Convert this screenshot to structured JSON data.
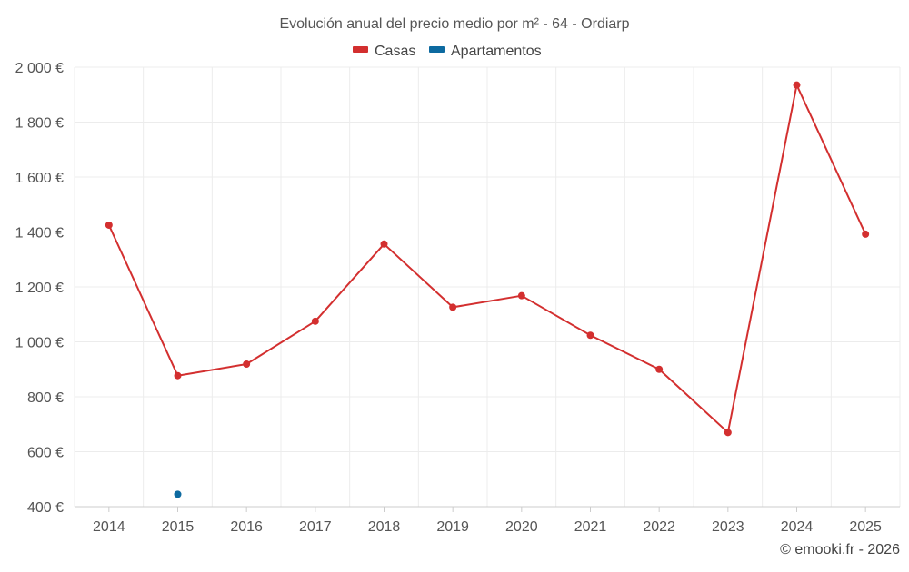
{
  "chart_data": {
    "type": "line",
    "title": "Evolución anual del precio medio por m² - 64 - Ordiarp",
    "categories": [
      "2014",
      "2015",
      "2016",
      "2017",
      "2018",
      "2019",
      "2020",
      "2021",
      "2022",
      "2023",
      "2024",
      "2025"
    ],
    "series": [
      {
        "name": "Casas",
        "color": "#d32f2f",
        "values": [
          1425,
          877,
          919,
          1075,
          1356,
          1126,
          1168,
          1024,
          900,
          670,
          1935,
          1392
        ]
      },
      {
        "name": "Apartamentos",
        "color": "#0d6aa0",
        "values": [
          null,
          445,
          null,
          null,
          null,
          null,
          null,
          null,
          null,
          null,
          null,
          null
        ]
      }
    ],
    "ylim": [
      400,
      2000
    ],
    "yticks": [
      400,
      600,
      800,
      1000,
      1200,
      1400,
      1600,
      1800,
      2000
    ],
    "ytick_labels": [
      "400 €",
      "600 €",
      "800 €",
      "1 000 €",
      "1 200 €",
      "1 400 €",
      "1 600 €",
      "1 800 €",
      "2 000 €"
    ],
    "xlabel": "",
    "ylabel": "",
    "grid": true,
    "legend": "top-center"
  },
  "copyright": "© emooki.fr - 2026"
}
